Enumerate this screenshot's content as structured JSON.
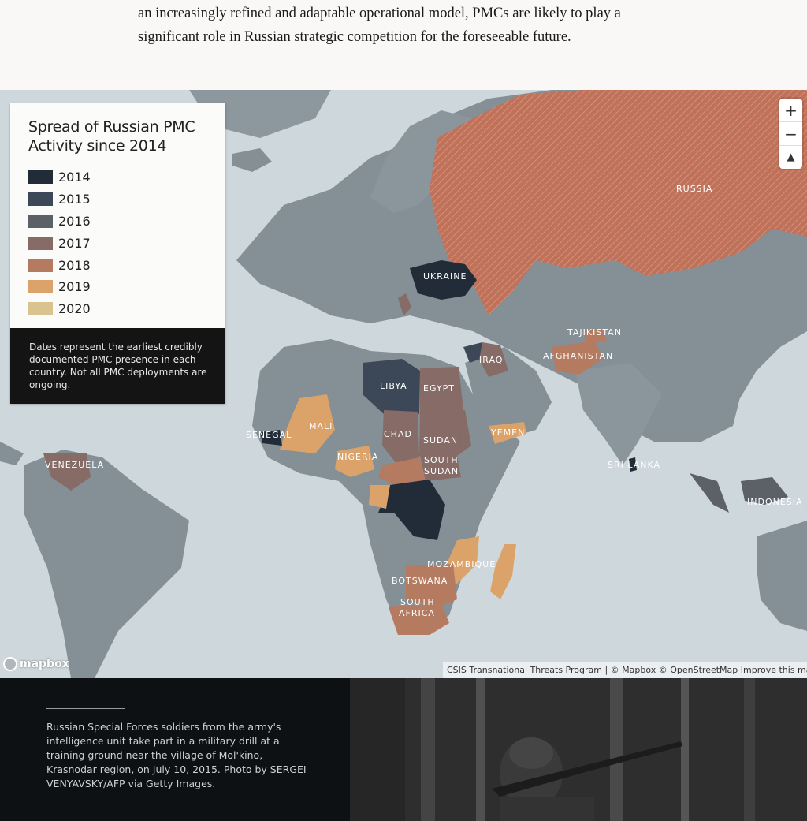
{
  "article": {
    "line1": "an increasingly refined and adaptable operational model, PMCs are likely to play a",
    "line2": "significant role in Russian strategic competition for the foreseeable future."
  },
  "legend": {
    "title_line1": "Spread of Russian PMC",
    "title_line2": "Activity since 2014",
    "items": [
      {
        "label": "2014",
        "color": "#222b38"
      },
      {
        "label": "2015",
        "color": "#3c4858"
      },
      {
        "label": "2016",
        "color": "#5c6168"
      },
      {
        "label": "2017",
        "color": "#866b66"
      },
      {
        "label": "2018",
        "color": "#b47b60"
      },
      {
        "label": "2019",
        "color": "#dba36a"
      },
      {
        "label": "2020",
        "color": "#d9c38e"
      }
    ],
    "note": "Dates represent the earliest credibly documented PMC presence in each country. Not all PMC deployments are ongoing."
  },
  "map_labels": {
    "russia": "RUSSIA",
    "ukraine": "UKRAINE",
    "libya": "LIBYA",
    "egypt": "EGYPT",
    "chad": "CHAD",
    "sudan": "SUDAN",
    "south_sudan_1": "SOUTH",
    "south_sudan_2": "SUDAN",
    "mali": "MALI",
    "senegal": "SENEGAL",
    "nigeria": "NIGERIA",
    "yemen": "YEMEN",
    "iraq": "IRAQ",
    "tajikistan": "TAJIKISTAN",
    "afghanistan": "AFGHANISTAN",
    "sri_lanka": "SRI LANKA",
    "indonesia": "INDONESIA",
    "venezuela": "VENEZUELA",
    "mozambique": "MOZAMBIQUE",
    "botswana": "BOTSWANA",
    "south_africa_1": "SOUTH",
    "south_africa_2": "AFRICA"
  },
  "controls": {
    "zoom_in": "+",
    "zoom_out": "−",
    "compass": "▲"
  },
  "mapbox_logo": "mapbox",
  "attribution": "CSIS Transnational Threats Program | © Mapbox © OpenStreetMap Improve this map",
  "caption": "Russian Special Forces soldiers from the army's intelligence unit take part in a military drill at a training ground near the village of Mol'kino, Krasnodar region, on July 10, 2015. Photo by SERGEI VENYAVSKY/AFP via Getty Images.",
  "colors": {
    "water": "#ced7db",
    "land": "#848f96",
    "russia": "#c0715a",
    "page_bg": "#f9f8f6",
    "caption_bg": "#0d1114"
  }
}
